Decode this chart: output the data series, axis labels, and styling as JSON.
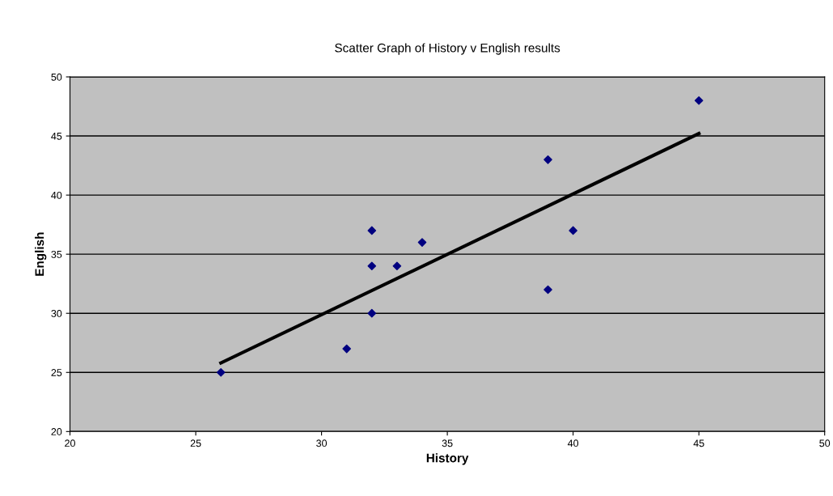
{
  "chart_data": {
    "type": "scatter",
    "title": "Scatter Graph of History v English results",
    "xlabel": "History",
    "ylabel": "English",
    "xlim": [
      20,
      50
    ],
    "xticks": [
      20,
      25,
      30,
      35,
      40,
      45,
      50
    ],
    "ylim": [
      20,
      50
    ],
    "yticks": [
      20,
      25,
      30,
      35,
      40,
      45,
      50
    ],
    "grid": "y",
    "series": [
      {
        "color": "#000080",
        "marker": "diamond",
        "x": [
          26,
          31,
          32,
          32,
          32,
          33,
          34,
          39,
          39,
          40,
          45
        ],
        "values": [
          25,
          27,
          37,
          34,
          30,
          34,
          36,
          43,
          32,
          37,
          48
        ]
      },
      {
        "type": "line",
        "color": "#000000",
        "x": [
          26,
          45
        ],
        "values": [
          25.8,
          45.2
        ]
      }
    ]
  }
}
